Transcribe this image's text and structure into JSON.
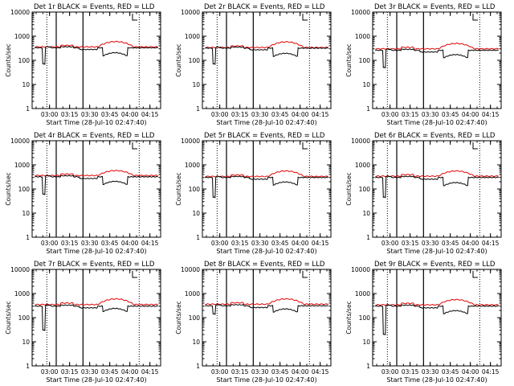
{
  "colors": {
    "events": "#000000",
    "lld": "#e00000"
  },
  "chart_data": [
    {
      "type": "line",
      "title": "Det 1r BLACK = Events, RED = LLD",
      "xlabel": "Start Time (28-Jul-10 02:47:40)",
      "ylabel": "Counts/sec",
      "ylog": true,
      "ylim": [
        1,
        10000
      ],
      "x_ticks": [
        "03:00",
        "03:15",
        "03:30",
        "03:45",
        "04:00",
        "04:15"
      ],
      "y_ticks": [
        "1",
        "10",
        "100",
        "1000",
        "10000"
      ],
      "events_base": 330,
      "lld_base": 360,
      "events_drop_min": 70,
      "events_dip": 180,
      "lld_peak": 600,
      "dotted_at": [
        "02:58",
        "04:07"
      ],
      "solid_at": [
        "03:05",
        "03:25"
      ]
    },
    {
      "type": "line",
      "title": "Det 2r BLACK = Events, RED = LLD",
      "xlabel": "Start Time (28-Jul-10 02:47:40)",
      "ylabel": "Counts/sec",
      "ylog": true,
      "ylim": [
        1,
        10000
      ],
      "x_ticks": [
        "03:00",
        "03:15",
        "03:30",
        "03:45",
        "04:00",
        "04:15"
      ],
      "y_ticks": [
        "1",
        "10",
        "100",
        "1000",
        "10000"
      ],
      "events_base": 320,
      "lld_base": 340,
      "events_drop_min": 70,
      "events_dip": 170,
      "lld_peak": 580,
      "dotted_at": [
        "02:58",
        "04:07"
      ],
      "solid_at": [
        "03:05",
        "03:25"
      ]
    },
    {
      "type": "line",
      "title": "Det 3r BLACK = Events, RED = LLD",
      "xlabel": "Start Time (28-Jul-10 02:47:40)",
      "ylabel": "Counts/sec",
      "ylog": true,
      "ylim": [
        1,
        10000
      ],
      "x_ticks": [
        "03:00",
        "03:15",
        "03:30",
        "03:45",
        "04:00",
        "04:15"
      ],
      "y_ticks": [
        "1",
        "10",
        "100",
        "1000",
        "10000"
      ],
      "events_base": 260,
      "lld_base": 300,
      "events_drop_min": 50,
      "events_dip": 150,
      "lld_peak": 500,
      "dotted_at": [
        "02:58",
        "04:07"
      ],
      "solid_at": [
        "03:05",
        "03:25"
      ]
    },
    {
      "type": "line",
      "title": "Det 4r BLACK = Events, RED = LLD",
      "xlabel": "Start Time (28-Jul-10 02:47:40)",
      "ylabel": "Counts/sec",
      "ylog": true,
      "ylim": [
        1,
        10000
      ],
      "x_ticks": [
        "03:00",
        "03:15",
        "03:30",
        "03:45",
        "04:00",
        "04:15"
      ],
      "y_ticks": [
        "1",
        "10",
        "100",
        "1000",
        "10000"
      ],
      "events_base": 320,
      "lld_base": 360,
      "events_drop_min": 60,
      "events_dip": 180,
      "lld_peak": 580,
      "dotted_at": [
        "02:58",
        "04:07"
      ],
      "solid_at": [
        "03:05",
        "03:25"
      ]
    },
    {
      "type": "line",
      "title": "Det 5r BLACK = Events, RED = LLD",
      "xlabel": "Start Time (28-Jul-10 02:47:40)",
      "ylabel": "Counts/sec",
      "ylog": true,
      "ylim": [
        1,
        10000
      ],
      "x_ticks": [
        "03:00",
        "03:15",
        "03:30",
        "03:45",
        "04:00",
        "04:15"
      ],
      "y_ticks": [
        "1",
        "10",
        "100",
        "1000",
        "10000"
      ],
      "events_base": 300,
      "lld_base": 330,
      "events_drop_min": 45,
      "events_dip": 170,
      "lld_peak": 560,
      "dotted_at": [
        "02:58",
        "04:07"
      ],
      "solid_at": [
        "03:05",
        "03:25"
      ]
    },
    {
      "type": "line",
      "title": "Det 6r BLACK = Events, RED = LLD",
      "xlabel": "Start Time (28-Jul-10 02:47:40)",
      "ylabel": "Counts/sec",
      "ylog": true,
      "ylim": [
        1,
        10000
      ],
      "x_ticks": [
        "03:00",
        "03:15",
        "03:30",
        "03:45",
        "04:00",
        "04:15"
      ],
      "y_ticks": [
        "1",
        "10",
        "100",
        "1000",
        "10000"
      ],
      "events_base": 300,
      "lld_base": 340,
      "events_drop_min": 45,
      "events_dip": 160,
      "lld_peak": 560,
      "dotted_at": [
        "02:58",
        "04:07"
      ],
      "solid_at": [
        "03:05",
        "03:25"
      ]
    },
    {
      "type": "line",
      "title": "Det 7r BLACK = Events, RED = LLD",
      "xlabel": "Start Time (28-Jul-10 02:47:40)",
      "ylabel": "Counts/sec",
      "ylog": true,
      "ylim": [
        1,
        10000
      ],
      "x_ticks": [
        "03:00",
        "03:15",
        "03:30",
        "03:45",
        "04:00",
        "04:15"
      ],
      "y_ticks": [
        "1",
        "10",
        "100",
        "1000",
        "10000"
      ],
      "events_base": 300,
      "lld_base": 350,
      "events_drop_min": 30,
      "events_dip": 210,
      "lld_peak": 600,
      "dotted_at": [
        "02:58",
        "04:07"
      ],
      "solid_at": [
        "03:05",
        "03:25"
      ]
    },
    {
      "type": "line",
      "title": "Det 8r BLACK = Events, RED = LLD",
      "xlabel": "Start Time (28-Jul-10 02:47:40)",
      "ylabel": "Counts/sec",
      "ylog": true,
      "ylim": [
        1,
        10000
      ],
      "x_ticks": [
        "03:00",
        "03:15",
        "03:30",
        "03:45",
        "04:00",
        "04:15"
      ],
      "y_ticks": [
        "1",
        "10",
        "100",
        "1000",
        "10000"
      ],
      "events_base": 310,
      "lld_base": 360,
      "events_drop_min": 140,
      "events_dip": 200,
      "lld_peak": 600,
      "dotted_at": [
        "02:58",
        "04:07"
      ],
      "solid_at": [
        "03:05",
        "03:25"
      ]
    },
    {
      "type": "line",
      "title": "Det 9r BLACK = Events, RED = LLD",
      "xlabel": "Start Time (28-Jul-10 02:47:40)",
      "ylabel": "Counts/sec",
      "ylog": true,
      "ylim": [
        1,
        10000
      ],
      "x_ticks": [
        "03:00",
        "03:15",
        "03:30",
        "03:45",
        "04:00",
        "04:15"
      ],
      "y_ticks": [
        "1",
        "10",
        "100",
        "1000",
        "10000"
      ],
      "events_base": 300,
      "lld_base": 340,
      "events_drop_min": 20,
      "events_dip": 170,
      "lld_peak": 560,
      "dotted_at": [
        "02:58",
        "04:07"
      ],
      "solid_at": [
        "03:05",
        "03:25"
      ]
    }
  ]
}
